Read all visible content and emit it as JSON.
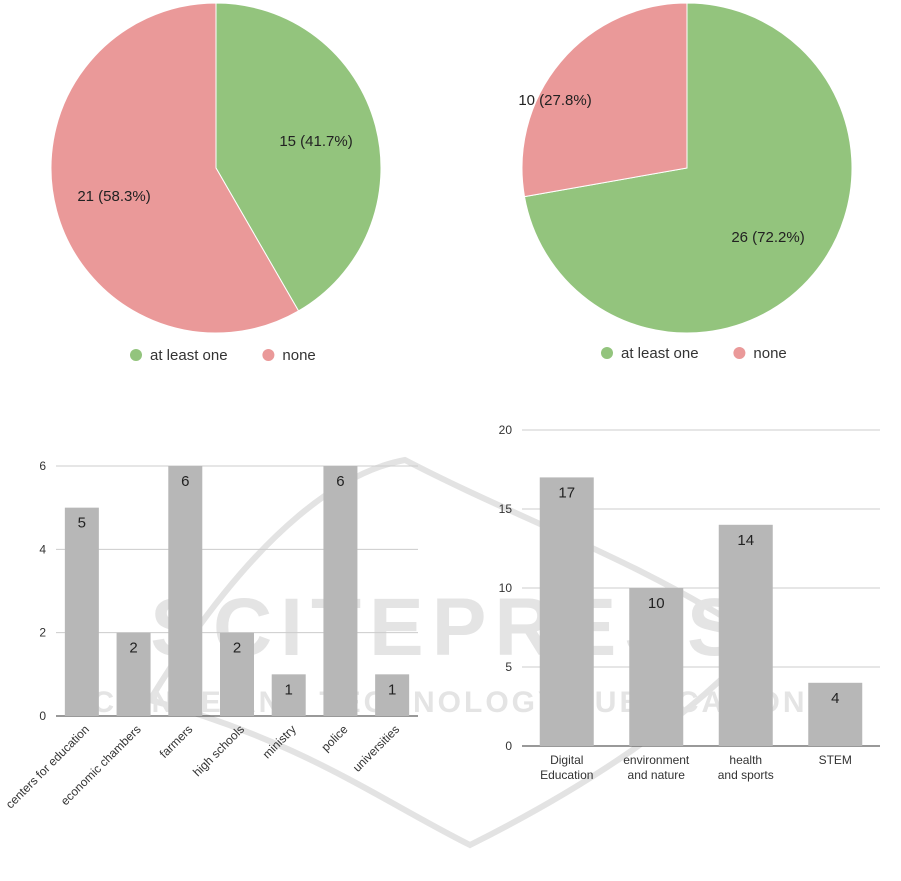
{
  "chart_data": [
    {
      "type": "pie",
      "slices": [
        {
          "label": "at least one",
          "value": 15,
          "display": "15 (41.7%)",
          "color": "#93c47d"
        },
        {
          "label": "none",
          "value": 21,
          "display": "21 (58.3%)",
          "color": "#ea9999"
        }
      ],
      "legend": [
        "at least one",
        "none"
      ],
      "legend_position": "bottom"
    },
    {
      "type": "pie",
      "slices": [
        {
          "label": "at least one",
          "value": 26,
          "display": "26 (72.2%)",
          "color": "#93c47d"
        },
        {
          "label": "none",
          "value": 10,
          "display": "10 (27.8%)",
          "color": "#ea9999"
        }
      ],
      "legend": [
        "at least one",
        "none"
      ],
      "legend_position": "bottom"
    },
    {
      "type": "bar",
      "categories": [
        "centers for education",
        "economic chambers",
        "farmers",
        "high schools",
        "ministry",
        "police",
        "universities"
      ],
      "values": [
        5,
        2,
        6,
        2,
        1,
        6,
        1
      ],
      "ylim": [
        0,
        6
      ],
      "yticks": [
        0,
        2,
        4,
        6
      ],
      "grid": true,
      "color": "#b7b7b7"
    },
    {
      "type": "bar",
      "categories": [
        "Digital Education",
        "environment and nature",
        "health and sports",
        "STEM"
      ],
      "values": [
        17,
        10,
        14,
        4
      ],
      "ylim": [
        0,
        20
      ],
      "yticks": [
        0,
        5,
        10,
        15,
        20
      ],
      "grid": true,
      "color": "#b7b7b7"
    }
  ],
  "watermark": {
    "line1": "SCITEPRESS",
    "line2": "SCIENCE AND TECHNOLOGY PUBLICATIONS"
  }
}
